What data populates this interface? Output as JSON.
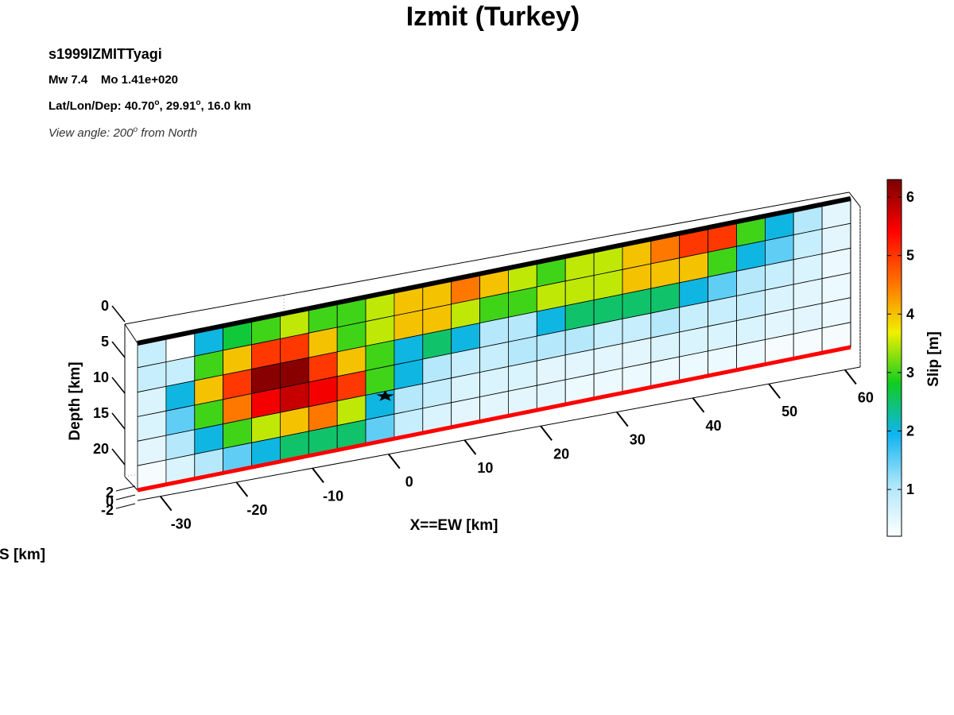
{
  "header": {
    "title": "Izmit (Turkey)",
    "event_id": "s1999IZMITTyagi",
    "mw": "Mw 7.4",
    "mo": "Mo 1.41e+020",
    "location_prefix": "Lat/Lon/Dep: ",
    "lat": "40.70",
    "lon": "29.91",
    "depth": "16.0 km",
    "view_prefix": "View angle: ",
    "view_angle": "200",
    "view_suffix": " from North",
    "degree_mark": "o"
  },
  "colors": {
    "hypocenter_star": "#000000",
    "top_edge": "#000000",
    "bottom_edge": "#ff0000",
    "grid_line": "#000000",
    "colormap": [
      "#ffffff",
      "#aee6fa",
      "#10b4f0",
      "#10cc20",
      "#f0f000",
      "#ff7000",
      "#ff0000",
      "#7a0000"
    ]
  },
  "chart_data": {
    "type": "heatmap",
    "title": "Izmit (Turkey)",
    "xlabel": "X==EW [km]",
    "ylabel": "Depth [km]",
    "zlabel": "S [km]",
    "colorbar_label": "Slip [m]",
    "x_ticks": [
      "-30",
      "-20",
      "-10",
      "0",
      "10",
      "20",
      "30",
      "40",
      "50",
      "60"
    ],
    "depth_ticks": [
      "0",
      "5",
      "10",
      "15",
      "20"
    ],
    "s_ticks": [
      "2",
      "0",
      "-2"
    ],
    "colorbar_ticks": [
      "1",
      "2",
      "3",
      "4",
      "5",
      "6"
    ],
    "colorbar_range": [
      0.2,
      6.3
    ],
    "xlim": [
      -33,
      62
    ],
    "depth_range": [
      2,
      22
    ],
    "hypocenter": {
      "x": 0,
      "depth": 16
    },
    "rows": 6,
    "cols": 25,
    "slip": [
      [
        0.8,
        0.2,
        2.0,
        2.7,
        3.0,
        3.5,
        3.0,
        3.0,
        3.5,
        4.0,
        4.0,
        4.5,
        4.0,
        3.5,
        3.0,
        3.5,
        3.5,
        4.0,
        4.5,
        5.0,
        5.0,
        3.0,
        2.0,
        1.0,
        0.5
      ],
      [
        0.8,
        0.8,
        3.0,
        4.0,
        5.0,
        5.0,
        4.0,
        3.0,
        3.5,
        4.0,
        4.0,
        3.5,
        3.0,
        3.0,
        3.5,
        3.5,
        3.5,
        4.0,
        4.0,
        4.0,
        3.0,
        2.0,
        1.5,
        0.8,
        0.5
      ],
      [
        0.6,
        2.0,
        4.0,
        5.0,
        6.2,
        6.2,
        5.0,
        4.0,
        3.0,
        2.0,
        2.5,
        2.0,
        1.0,
        1.0,
        2.0,
        2.5,
        2.5,
        2.5,
        2.5,
        2.0,
        1.5,
        1.0,
        0.8,
        0.6,
        0.4
      ],
      [
        0.6,
        1.5,
        3.0,
        4.5,
        5.5,
        5.8,
        5.5,
        5.0,
        3.0,
        2.0,
        1.0,
        0.8,
        0.8,
        1.0,
        1.0,
        1.0,
        0.8,
        0.8,
        1.0,
        0.8,
        0.8,
        0.8,
        0.6,
        0.5,
        0.4
      ],
      [
        0.5,
        1.0,
        2.0,
        3.0,
        3.5,
        4.0,
        4.5,
        3.5,
        2.0,
        1.0,
        0.8,
        0.6,
        0.6,
        0.6,
        0.5,
        0.5,
        0.5,
        0.5,
        0.6,
        0.6,
        0.6,
        0.6,
        0.5,
        0.5,
        0.4
      ],
      [
        0.3,
        0.6,
        1.0,
        1.5,
        2.0,
        2.5,
        2.5,
        2.5,
        1.5,
        0.8,
        0.6,
        0.5,
        0.5,
        0.5,
        0.5,
        0.4,
        0.4,
        0.4,
        0.4,
        0.4,
        0.4,
        0.4,
        0.3,
        0.3,
        0.3
      ]
    ]
  }
}
